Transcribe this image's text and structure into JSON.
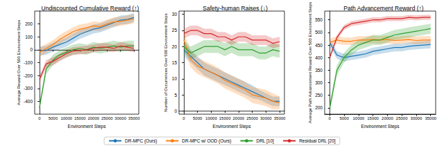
{
  "chart_data": [
    {
      "type": "line",
      "title": "Undiscounted Cumulative Reward (↑)",
      "x_label": "Environment Steps",
      "y_label": "Average Reward Over 500 Environment Steps",
      "x": [
        0,
        2500,
        5000,
        7500,
        10000,
        12500,
        15000,
        17500,
        20000,
        22500,
        25000,
        27500,
        30000,
        32500,
        35000
      ],
      "xlim": [
        -1750,
        36750
      ],
      "xticks": [
        0,
        5000,
        10000,
        15000,
        20000,
        25000,
        30000,
        35000
      ],
      "ylim": [
        -500,
        300
      ],
      "yticks": [
        -400,
        -300,
        -200,
        -100,
        0,
        100,
        200
      ],
      "grid": false,
      "series": [
        {
          "name": "DR-MPC (Ours)",
          "color": "#1f77b4",
          "values": [
            -10,
            -5,
            20,
            40,
            60,
            90,
            120,
            140,
            160,
            170,
            190,
            210,
            230,
            235,
            250
          ],
          "lower": [
            -45,
            -40,
            -15,
            5,
            25,
            55,
            85,
            105,
            125,
            135,
            155,
            175,
            195,
            200,
            215
          ],
          "upper": [
            25,
            30,
            55,
            75,
            95,
            125,
            155,
            175,
            195,
            205,
            225,
            245,
            265,
            270,
            285
          ]
        },
        {
          "name": "DR-MPC w/ OOD (Ours)",
          "color": "#ff7f0e",
          "values": [
            -20,
            10,
            40,
            80,
            110,
            140,
            160,
            170,
            185,
            180,
            200,
            215,
            220,
            230,
            240
          ],
          "lower": [
            -55,
            -25,
            5,
            45,
            75,
            105,
            125,
            135,
            150,
            145,
            165,
            180,
            185,
            195,
            205
          ],
          "upper": [
            15,
            45,
            75,
            115,
            145,
            175,
            195,
            205,
            220,
            215,
            235,
            250,
            255,
            265,
            275
          ]
        },
        {
          "name": "DRL [10]",
          "color": "#2ca02c",
          "values": [
            -450,
            -150,
            -80,
            -40,
            -20,
            0,
            10,
            0,
            20,
            10,
            20,
            30,
            20,
            30,
            30
          ],
          "lower": [
            -480,
            -190,
            -120,
            -80,
            -60,
            -40,
            -30,
            -40,
            -20,
            -30,
            -20,
            -10,
            -20,
            -10,
            -10
          ],
          "upper": [
            -420,
            -110,
            -40,
            0,
            20,
            40,
            50,
            40,
            60,
            50,
            60,
            70,
            60,
            70,
            70
          ]
        },
        {
          "name": "Residual DRL [20]",
          "color": "#d62728",
          "values": [
            -230,
            -110,
            -90,
            -60,
            -30,
            -10,
            -5,
            0,
            10,
            20,
            20,
            10,
            30,
            20,
            10
          ],
          "lower": [
            -260,
            -140,
            -120,
            -90,
            -60,
            -40,
            -35,
            -30,
            -20,
            -10,
            -10,
            -20,
            0,
            -10,
            -20
          ],
          "upper": [
            -200,
            -80,
            -60,
            -30,
            0,
            20,
            25,
            30,
            40,
            50,
            50,
            40,
            60,
            50,
            40
          ]
        }
      ]
    },
    {
      "type": "line",
      "title": "Safety-human Raises (↓)",
      "x_label": "Environment Steps",
      "y_label": "Number of Occurrences Over 500 Environment Steps",
      "x": [
        0,
        2500,
        5000,
        7500,
        10000,
        12500,
        15000,
        17500,
        20000,
        22500,
        25000,
        27500,
        30000,
        32500,
        35000
      ],
      "xlim": [
        -1750,
        36750
      ],
      "xticks": [
        0,
        5000,
        10000,
        15000,
        20000,
        25000,
        30000,
        35000
      ],
      "ylim": [
        -1,
        31
      ],
      "yticks": [
        0,
        5,
        10,
        15,
        20,
        25,
        30
      ],
      "grid": false,
      "legend": "bottom",
      "series": [
        {
          "name": "DR-MPC (Ours)",
          "color": "#1f77b4",
          "values": [
            19,
            17,
            15,
            13,
            12,
            11,
            10,
            9,
            8,
            7,
            6,
            5,
            4,
            3,
            3
          ],
          "lower": [
            17,
            15,
            13,
            11,
            10,
            9,
            8,
            7,
            6,
            5,
            4,
            3.5,
            2.5,
            1.5,
            1.5
          ],
          "upper": [
            21,
            19,
            17,
            15,
            14,
            13,
            12,
            11,
            10,
            9,
            8,
            6.5,
            5.5,
            4.5,
            4.5
          ]
        },
        {
          "name": "DR-MPC w/ OOD (Ours)",
          "color": "#ff7f0e",
          "values": [
            22,
            16,
            14,
            13,
            12,
            11,
            9.5,
            8.5,
            7.5,
            6.5,
            5,
            4.5,
            4,
            3,
            2.5
          ],
          "lower": [
            19.5,
            13.5,
            11.5,
            10.5,
            9.5,
            8.5,
            7,
            6,
            5,
            4,
            2.5,
            2,
            1.5,
            0.5,
            0.5
          ],
          "upper": [
            24.5,
            18.5,
            16.5,
            15.5,
            14.5,
            13.5,
            12,
            11,
            10,
            9,
            7.5,
            7,
            6.5,
            5.5,
            4.5
          ]
        },
        {
          "name": "DRL [10]",
          "color": "#2ca02c",
          "values": [
            20,
            18,
            19,
            20,
            20,
            20,
            19,
            20,
            19,
            19,
            19,
            18,
            18,
            19,
            18.5
          ],
          "lower": [
            18,
            16,
            17,
            18,
            18,
            18,
            17,
            18,
            17,
            17,
            17,
            16,
            16,
            17,
            16.5
          ],
          "upper": [
            22,
            20,
            21,
            22,
            22,
            22,
            21,
            22,
            21,
            21,
            21,
            20,
            20,
            21,
            20.5
          ]
        },
        {
          "name": "Residual DRL [20]",
          "color": "#d62728",
          "values": [
            24,
            25,
            25,
            24,
            24,
            23,
            23,
            22,
            23,
            23,
            22,
            22,
            22,
            21,
            21.5
          ],
          "lower": [
            22.5,
            23.5,
            23.5,
            22.5,
            22.5,
            21.5,
            21.5,
            20.5,
            21.5,
            21.5,
            20.5,
            20.5,
            20.5,
            19.5,
            20
          ],
          "upper": [
            25.5,
            26.5,
            26.5,
            25.5,
            25.5,
            24.5,
            24.5,
            23.5,
            24.5,
            24.5,
            23.5,
            23.5,
            23.5,
            22.5,
            23
          ]
        }
      ]
    },
    {
      "type": "line",
      "title": "Path Advancement Reward (↑)",
      "x_label": "Environment Steps",
      "y_label": "Average Path Advancement Reward Over 500 Environment Steps",
      "x": [
        0,
        2500,
        5000,
        7500,
        10000,
        12500,
        15000,
        17500,
        20000,
        22500,
        25000,
        27500,
        30000,
        32500,
        35000
      ],
      "xlim": [
        -1750,
        36750
      ],
      "xticks": [
        0,
        5000,
        10000,
        15000,
        20000,
        25000,
        30000,
        35000
      ],
      "ylim": [
        175,
        585
      ],
      "yticks": [
        200,
        250,
        300,
        350,
        400,
        450,
        500,
        550
      ],
      "grid": false,
      "series": [
        {
          "name": "DR-MPC (Ours)",
          "color": "#1f77b4",
          "values": [
            460,
            410,
            400,
            405,
            410,
            415,
            425,
            430,
            435,
            440,
            440,
            445,
            448,
            450,
            452
          ],
          "lower": [
            445,
            395,
            385,
            390,
            395,
            400,
            410,
            415,
            420,
            425,
            425,
            430,
            433,
            435,
            437
          ],
          "upper": [
            475,
            425,
            415,
            420,
            425,
            430,
            440,
            445,
            450,
            455,
            455,
            460,
            463,
            465,
            467
          ]
        },
        {
          "name": "DR-MPC w/ OOD (Ours)",
          "color": "#ff7f0e",
          "values": [
            460,
            470,
            465,
            465,
            470,
            470,
            472,
            470,
            472,
            468,
            470,
            472,
            468,
            470,
            470
          ],
          "lower": [
            445,
            455,
            450,
            450,
            455,
            455,
            457,
            455,
            457,
            453,
            455,
            457,
            453,
            455,
            455
          ],
          "upper": [
            475,
            485,
            480,
            480,
            485,
            485,
            487,
            485,
            487,
            483,
            485,
            487,
            483,
            485,
            485
          ]
        },
        {
          "name": "DRL [10]",
          "color": "#2ca02c",
          "values": [
            200,
            350,
            400,
            430,
            450,
            460,
            470,
            470,
            480,
            490,
            495,
            500,
            505,
            510,
            515
          ],
          "lower": [
            180,
            330,
            380,
            410,
            430,
            440,
            450,
            450,
            460,
            470,
            475,
            480,
            485,
            490,
            495
          ],
          "upper": [
            220,
            370,
            420,
            450,
            470,
            480,
            490,
            490,
            500,
            510,
            515,
            520,
            525,
            530,
            535
          ]
        },
        {
          "name": "Residual DRL [20]",
          "color": "#d62728",
          "values": [
            400,
            480,
            520,
            535,
            540,
            545,
            550,
            550,
            555,
            555,
            555,
            560,
            558,
            560,
            560
          ],
          "lower": [
            390,
            470,
            510,
            525,
            530,
            535,
            540,
            540,
            545,
            545,
            545,
            550,
            548,
            550,
            550
          ],
          "upper": [
            410,
            490,
            530,
            545,
            550,
            555,
            560,
            560,
            565,
            565,
            565,
            570,
            568,
            570,
            570
          ]
        }
      ]
    }
  ]
}
